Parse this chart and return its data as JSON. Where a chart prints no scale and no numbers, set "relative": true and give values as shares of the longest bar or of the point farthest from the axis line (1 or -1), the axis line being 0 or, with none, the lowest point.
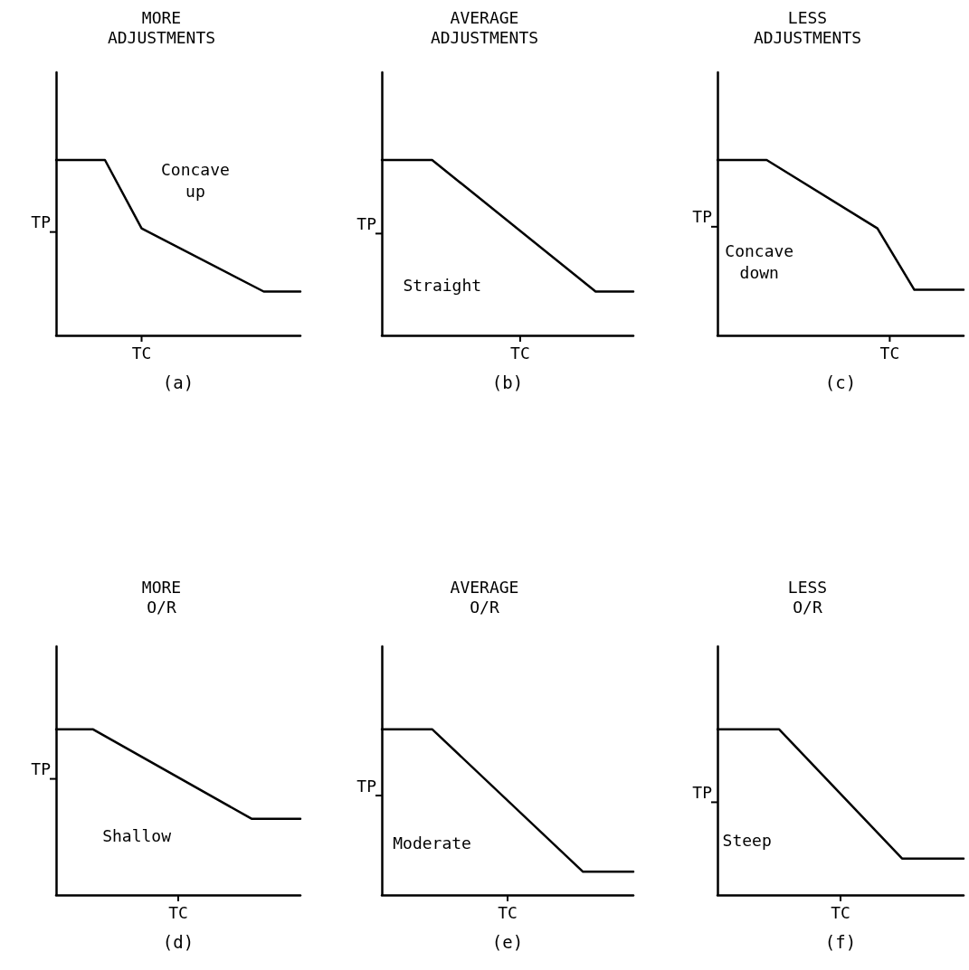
{
  "chart_data": [
    {
      "type": "line",
      "title": "MORE\nADJUSTMENTS",
      "xlabel": "(a)",
      "categories": [
        null,
        null,
        null,
        null,
        null,
        null,
        null,
        null,
        null,
        null,
        null,
        null,
        null,
        null,
        null,
        null,
        null,
        null,
        null,
        null,
        null
      ],
      "values": [
        1,
        null,
        null,
        null,
        1,
        null,
        null,
        0.61,
        null,
        null,
        null,
        null,
        null,
        null,
        null,
        null,
        null,
        0.25,
        null,
        null,
        0.25
      ],
      "color": "#000000",
      "relative": true,
      "marker": "none",
      "line_style": "solid",
      "annotations": [
        "TP",
        "TC",
        "Concave\nup"
      ]
    },
    {
      "type": "line",
      "title": "AVERAGE\nADJUSTMENTS",
      "xlabel": "(b)",
      "categories": [
        null,
        null,
        null,
        null,
        null,
        null,
        null,
        null,
        null,
        null,
        null,
        null,
        null,
        null,
        null,
        null,
        null,
        null,
        null,
        null,
        null
      ],
      "values": [
        1,
        null,
        null,
        null,
        1,
        null,
        null,
        null,
        null,
        null,
        null,
        null,
        null,
        null,
        null,
        null,
        null,
        0.25,
        null,
        null,
        0.25
      ],
      "color": "#000000",
      "relative": true,
      "marker": "none",
      "line_style": "solid",
      "annotations": [
        "TP",
        "TC",
        "Straight"
      ]
    },
    {
      "type": "line",
      "title": "LESS\nADJUSTMENTS",
      "xlabel": "(c)",
      "categories": [
        null,
        null,
        null,
        null,
        null,
        null,
        null,
        null,
        null,
        null,
        null,
        null,
        null,
        null,
        null,
        null,
        null,
        null,
        null,
        null,
        null
      ],
      "values": [
        1,
        null,
        null,
        null,
        1,
        null,
        null,
        null,
        null,
        null,
        null,
        null,
        null,
        0.61,
        null,
        null,
        0.26,
        null,
        null,
        null,
        0.26
      ],
      "color": "#000000",
      "relative": true,
      "marker": "none",
      "line_style": "solid",
      "annotations": [
        "TP",
        "TC",
        "Concave\ndown"
      ]
    },
    {
      "type": "line",
      "title": "MORE\nO/R",
      "xlabel": "(d)",
      "categories": [
        null,
        null,
        null,
        null,
        null,
        null,
        null,
        null,
        null,
        null,
        null,
        null,
        null,
        null,
        null,
        null,
        null,
        null,
        null,
        null,
        null
      ],
      "values": [
        1,
        null,
        null,
        1,
        null,
        null,
        null,
        null,
        null,
        null,
        null,
        null,
        null,
        null,
        null,
        null,
        0.46,
        null,
        null,
        null,
        0.46
      ],
      "color": "#000000",
      "relative": true,
      "marker": "none",
      "line_style": "solid",
      "annotations": [
        "TP",
        "TC",
        "Shallow"
      ]
    },
    {
      "type": "line",
      "title": "AVERAGE\nO/R",
      "xlabel": "(e)",
      "categories": [
        null,
        null,
        null,
        null,
        null,
        null,
        null,
        null,
        null,
        null,
        null,
        null,
        null,
        null,
        null,
        null,
        null,
        null,
        null,
        null,
        null
      ],
      "values": [
        1,
        null,
        null,
        null,
        1,
        null,
        null,
        null,
        null,
        null,
        null,
        null,
        null,
        null,
        null,
        null,
        0.14,
        null,
        null,
        null,
        0.14
      ],
      "color": "#000000",
      "relative": true,
      "marker": "none",
      "line_style": "solid",
      "annotations": [
        "TP",
        "TC",
        "Moderate"
      ]
    },
    {
      "type": "line",
      "title": "LESS\nO/R",
      "xlabel": "(f)",
      "categories": [
        null,
        null,
        null,
        null,
        null,
        null,
        null,
        null,
        null,
        null,
        null,
        null,
        null,
        null,
        null,
        null,
        null,
        null,
        null,
        null,
        null
      ],
      "values": [
        1,
        null,
        null,
        null,
        null,
        1,
        null,
        null,
        null,
        null,
        null,
        null,
        null,
        null,
        null,
        0.22,
        null,
        null,
        null,
        null,
        0.22
      ],
      "color": "#000000",
      "relative": true,
      "marker": "none",
      "line_style": "solid",
      "annotations": [
        "TP",
        "TC",
        "Steep"
      ]
    }
  ]
}
